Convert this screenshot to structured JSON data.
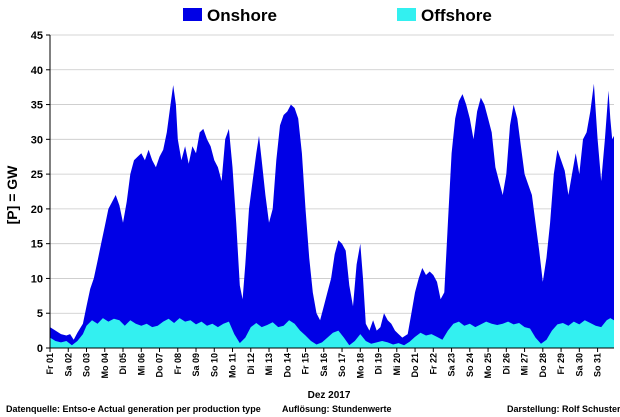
{
  "chart_data": {
    "type": "area",
    "ylabel": "[P] = GW",
    "xlabel": "Dez 2017",
    "ylim": [
      0,
      45
    ],
    "yticks": [
      "0",
      "5",
      "10",
      "15",
      "20",
      "25",
      "30",
      "35",
      "40",
      "45"
    ],
    "grid": "horizontal",
    "legend_position": "top-center",
    "categories": [
      "Fr 01",
      "Sa 02",
      "So 03",
      "Mo 04",
      "Di 05",
      "Mi 06",
      "Do 07",
      "Fr 08",
      "Sa 09",
      "So 10",
      "Mo 11",
      "Di 12",
      "Mi 13",
      "Do 14",
      "Fr 15",
      "Sa 16",
      "So 17",
      "Mo 18",
      "Di 19",
      "Mi 20",
      "Do 21",
      "Fr 22",
      "Sa 23",
      "So 24",
      "Mo 25",
      "Di 26",
      "Mi 27",
      "Do 28",
      "Fr 29",
      "Sa 30",
      "So 31"
    ],
    "x_days": [
      1,
      31.9
    ],
    "series": [
      {
        "name": "Onshore",
        "color": "#0000e6",
        "points": [
          [
            1.0,
            3.0
          ],
          [
            1.3,
            2.5
          ],
          [
            1.6,
            2.0
          ],
          [
            1.9,
            1.8
          ],
          [
            2.1,
            2.0
          ],
          [
            2.3,
            1.2
          ],
          [
            2.5,
            2.2
          ],
          [
            2.8,
            3.5
          ],
          [
            3.0,
            6.0
          ],
          [
            3.2,
            8.5
          ],
          [
            3.4,
            10.0
          ],
          [
            3.6,
            12.5
          ],
          [
            3.8,
            15.0
          ],
          [
            4.0,
            17.5
          ],
          [
            4.2,
            20.0
          ],
          [
            4.4,
            21.0
          ],
          [
            4.6,
            22.0
          ],
          [
            4.8,
            20.5
          ],
          [
            5.0,
            18.0
          ],
          [
            5.2,
            21.0
          ],
          [
            5.4,
            25.0
          ],
          [
            5.6,
            27.0
          ],
          [
            5.8,
            27.5
          ],
          [
            6.0,
            28.0
          ],
          [
            6.2,
            27.0
          ],
          [
            6.4,
            28.5
          ],
          [
            6.6,
            27.0
          ],
          [
            6.8,
            26.0
          ],
          [
            7.0,
            27.5
          ],
          [
            7.2,
            28.5
          ],
          [
            7.4,
            31.0
          ],
          [
            7.6,
            35.0
          ],
          [
            7.75,
            37.8
          ],
          [
            7.9,
            35.0
          ],
          [
            8.0,
            30.0
          ],
          [
            8.2,
            27.0
          ],
          [
            8.4,
            29.0
          ],
          [
            8.6,
            26.5
          ],
          [
            8.8,
            29.0
          ],
          [
            9.0,
            28.0
          ],
          [
            9.2,
            31.0
          ],
          [
            9.4,
            31.5
          ],
          [
            9.6,
            30.0
          ],
          [
            9.8,
            29.0
          ],
          [
            10.0,
            27.0
          ],
          [
            10.2,
            26.0
          ],
          [
            10.4,
            24.0
          ],
          [
            10.6,
            30.0
          ],
          [
            10.8,
            31.5
          ],
          [
            11.0,
            26.0
          ],
          [
            11.2,
            18.0
          ],
          [
            11.4,
            9.0
          ],
          [
            11.55,
            7.0
          ],
          [
            11.7,
            12.0
          ],
          [
            11.9,
            20.0
          ],
          [
            12.1,
            24.0
          ],
          [
            12.3,
            28.0
          ],
          [
            12.45,
            30.5
          ],
          [
            12.6,
            27.0
          ],
          [
            12.8,
            22.0
          ],
          [
            13.0,
            18.0
          ],
          [
            13.2,
            20.0
          ],
          [
            13.4,
            27.0
          ],
          [
            13.6,
            32.0
          ],
          [
            13.8,
            33.5
          ],
          [
            14.0,
            34.0
          ],
          [
            14.2,
            35.0
          ],
          [
            14.4,
            34.5
          ],
          [
            14.6,
            33.0
          ],
          [
            14.8,
            28.0
          ],
          [
            15.0,
            20.0
          ],
          [
            15.2,
            13.0
          ],
          [
            15.4,
            8.0
          ],
          [
            15.6,
            5.0
          ],
          [
            15.8,
            4.0
          ],
          [
            16.0,
            6.0
          ],
          [
            16.2,
            8.0
          ],
          [
            16.4,
            10.0
          ],
          [
            16.6,
            13.5
          ],
          [
            16.8,
            15.5
          ],
          [
            17.0,
            15.0
          ],
          [
            17.2,
            14.0
          ],
          [
            17.4,
            9.0
          ],
          [
            17.6,
            6.0
          ],
          [
            17.8,
            12.0
          ],
          [
            18.0,
            15.0
          ],
          [
            18.15,
            10.0
          ],
          [
            18.3,
            3.5
          ],
          [
            18.5,
            2.5
          ],
          [
            18.7,
            4.0
          ],
          [
            18.9,
            2.5
          ],
          [
            19.1,
            3.0
          ],
          [
            19.3,
            5.0
          ],
          [
            19.5,
            4.0
          ],
          [
            19.7,
            3.5
          ],
          [
            19.9,
            2.5
          ],
          [
            20.1,
            2.0
          ],
          [
            20.3,
            1.5
          ],
          [
            20.6,
            2.0
          ],
          [
            20.8,
            5.0
          ],
          [
            21.0,
            8.0
          ],
          [
            21.2,
            10.0
          ],
          [
            21.4,
            11.5
          ],
          [
            21.6,
            10.5
          ],
          [
            21.8,
            11.0
          ],
          [
            22.0,
            10.5
          ],
          [
            22.2,
            9.5
          ],
          [
            22.4,
            7.0
          ],
          [
            22.6,
            8.0
          ],
          [
            22.8,
            18.0
          ],
          [
            23.0,
            28.0
          ],
          [
            23.2,
            33.0
          ],
          [
            23.4,
            35.5
          ],
          [
            23.6,
            36.5
          ],
          [
            23.8,
            35.0
          ],
          [
            24.0,
            33.0
          ],
          [
            24.2,
            30.0
          ],
          [
            24.4,
            34.0
          ],
          [
            24.6,
            36.0
          ],
          [
            24.8,
            35.0
          ],
          [
            25.0,
            33.0
          ],
          [
            25.2,
            31.0
          ],
          [
            25.4,
            26.0
          ],
          [
            25.6,
            24.0
          ],
          [
            25.8,
            22.0
          ],
          [
            26.0,
            25.0
          ],
          [
            26.2,
            32.0
          ],
          [
            26.4,
            35.0
          ],
          [
            26.6,
            33.0
          ],
          [
            26.8,
            29.0
          ],
          [
            27.0,
            25.0
          ],
          [
            27.2,
            23.5
          ],
          [
            27.4,
            22.0
          ],
          [
            27.6,
            18.0
          ],
          [
            27.8,
            14.0
          ],
          [
            28.0,
            9.5
          ],
          [
            28.2,
            13.0
          ],
          [
            28.4,
            18.0
          ],
          [
            28.6,
            25.0
          ],
          [
            28.8,
            28.5
          ],
          [
            29.0,
            27.0
          ],
          [
            29.2,
            25.5
          ],
          [
            29.4,
            22.0
          ],
          [
            29.6,
            25.0
          ],
          [
            29.8,
            28.0
          ],
          [
            30.0,
            25.0
          ],
          [
            30.2,
            30.0
          ],
          [
            30.4,
            31.0
          ],
          [
            30.6,
            34.0
          ],
          [
            30.8,
            38.0
          ],
          [
            31.0,
            30.0
          ],
          [
            31.2,
            24.0
          ],
          [
            31.4,
            30.0
          ],
          [
            31.6,
            37.0
          ],
          [
            31.7,
            33.0
          ],
          [
            31.8,
            30.0
          ],
          [
            31.9,
            30.5
          ]
        ]
      },
      {
        "name": "Offshore",
        "color": "#33f0f0",
        "points": [
          [
            1.0,
            1.5
          ],
          [
            1.3,
            1.0
          ],
          [
            1.6,
            0.8
          ],
          [
            1.9,
            1.0
          ],
          [
            2.2,
            0.4
          ],
          [
            2.5,
            1.0
          ],
          [
            2.8,
            2.0
          ],
          [
            3.0,
            3.2
          ],
          [
            3.3,
            4.0
          ],
          [
            3.6,
            3.5
          ],
          [
            3.9,
            4.3
          ],
          [
            4.2,
            3.8
          ],
          [
            4.5,
            4.2
          ],
          [
            4.8,
            4.0
          ],
          [
            5.1,
            3.2
          ],
          [
            5.4,
            4.0
          ],
          [
            5.7,
            3.5
          ],
          [
            6.0,
            3.2
          ],
          [
            6.3,
            3.5
          ],
          [
            6.6,
            3.0
          ],
          [
            6.9,
            3.2
          ],
          [
            7.2,
            3.8
          ],
          [
            7.5,
            4.2
          ],
          [
            7.8,
            3.6
          ],
          [
            8.1,
            4.3
          ],
          [
            8.4,
            3.8
          ],
          [
            8.7,
            4.0
          ],
          [
            9.0,
            3.4
          ],
          [
            9.3,
            3.8
          ],
          [
            9.6,
            3.2
          ],
          [
            9.9,
            3.5
          ],
          [
            10.2,
            3.0
          ],
          [
            10.5,
            3.5
          ],
          [
            10.8,
            3.8
          ],
          [
            11.1,
            2.0
          ],
          [
            11.4,
            0.7
          ],
          [
            11.7,
            1.5
          ],
          [
            12.0,
            3.0
          ],
          [
            12.3,
            3.6
          ],
          [
            12.6,
            3.0
          ],
          [
            12.9,
            3.3
          ],
          [
            13.2,
            3.7
          ],
          [
            13.5,
            3.0
          ],
          [
            13.8,
            3.2
          ],
          [
            14.1,
            4.0
          ],
          [
            14.4,
            3.5
          ],
          [
            14.7,
            2.5
          ],
          [
            15.0,
            1.8
          ],
          [
            15.3,
            1.0
          ],
          [
            15.6,
            0.5
          ],
          [
            15.9,
            0.8
          ],
          [
            16.2,
            1.5
          ],
          [
            16.5,
            2.2
          ],
          [
            16.8,
            2.5
          ],
          [
            17.1,
            1.5
          ],
          [
            17.4,
            0.4
          ],
          [
            17.7,
            1.0
          ],
          [
            18.0,
            2.0
          ],
          [
            18.3,
            1.0
          ],
          [
            18.6,
            0.6
          ],
          [
            18.9,
            0.8
          ],
          [
            19.2,
            1.0
          ],
          [
            19.5,
            0.8
          ],
          [
            19.8,
            0.5
          ],
          [
            20.1,
            0.7
          ],
          [
            20.4,
            0.4
          ],
          [
            20.7,
            0.9
          ],
          [
            21.0,
            1.6
          ],
          [
            21.3,
            2.2
          ],
          [
            21.6,
            1.8
          ],
          [
            21.9,
            2.0
          ],
          [
            22.2,
            1.6
          ],
          [
            22.5,
            1.2
          ],
          [
            22.8,
            2.5
          ],
          [
            23.1,
            3.5
          ],
          [
            23.4,
            3.8
          ],
          [
            23.7,
            3.2
          ],
          [
            24.0,
            3.5
          ],
          [
            24.3,
            3.0
          ],
          [
            24.6,
            3.4
          ],
          [
            24.9,
            3.8
          ],
          [
            25.2,
            3.5
          ],
          [
            25.5,
            3.3
          ],
          [
            25.8,
            3.5
          ],
          [
            26.1,
            3.8
          ],
          [
            26.4,
            3.4
          ],
          [
            26.7,
            3.6
          ],
          [
            27.0,
            3.0
          ],
          [
            27.3,
            2.8
          ],
          [
            27.6,
            1.5
          ],
          [
            27.9,
            0.6
          ],
          [
            28.2,
            1.2
          ],
          [
            28.5,
            2.5
          ],
          [
            28.8,
            3.4
          ],
          [
            29.1,
            3.6
          ],
          [
            29.4,
            3.2
          ],
          [
            29.7,
            3.8
          ],
          [
            30.0,
            3.4
          ],
          [
            30.3,
            4.0
          ],
          [
            30.6,
            3.6
          ],
          [
            30.9,
            3.2
          ],
          [
            31.2,
            3.0
          ],
          [
            31.5,
            4.0
          ],
          [
            31.7,
            4.3
          ],
          [
            31.9,
            4.0
          ]
        ]
      }
    ]
  },
  "footer": {
    "source": "Datenquelle: Entso-e  Actual generation per production type",
    "resolution": "Auflösung: Stundenwerte",
    "author": "Darstellung:  Rolf Schuster"
  }
}
